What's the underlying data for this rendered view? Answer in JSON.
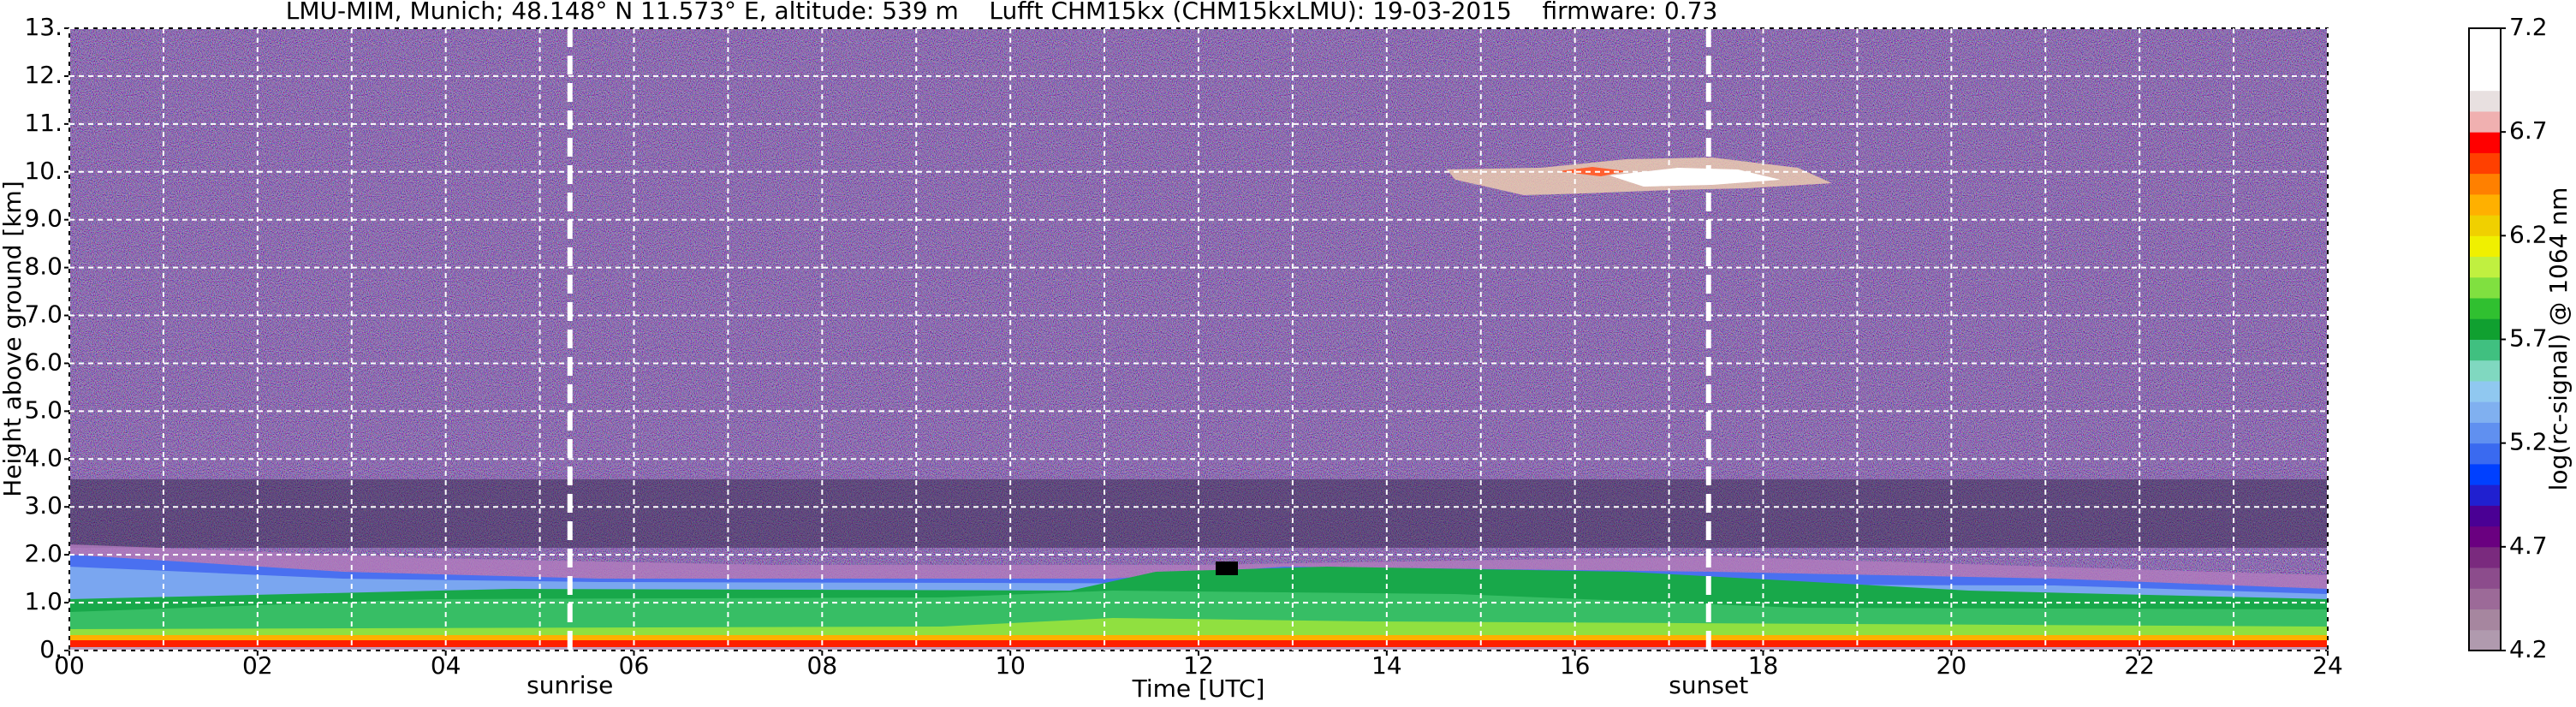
{
  "chart_data": {
    "type": "time-height",
    "title": "LMU-MIM, Munich; 48.148° N 11.573° E, altitude: 539 m    Lufft CHM15kx (CHM15kxLMU): 19-03-2015    firmware: 0.73",
    "xlabel": "Time [UTC]",
    "ylabel": "Height above ground [km]",
    "xlim": [
      0,
      24
    ],
    "xticks": [
      {
        "value": 0,
        "label": "00"
      },
      {
        "value": 2,
        "label": "02"
      },
      {
        "value": 4,
        "label": "04"
      },
      {
        "value": 6,
        "label": "06"
      },
      {
        "value": 8,
        "label": "08"
      },
      {
        "value": 10,
        "label": "10"
      },
      {
        "value": 12,
        "label": "12"
      },
      {
        "value": 14,
        "label": "14"
      },
      {
        "value": 16,
        "label": "16"
      },
      {
        "value": 18,
        "label": "18"
      },
      {
        "value": 20,
        "label": "20"
      },
      {
        "value": 22,
        "label": "22"
      },
      {
        "value": 24,
        "label": "24"
      }
    ],
    "xminorticks": [
      1,
      3,
      5,
      7,
      9,
      11,
      13,
      15,
      17,
      19,
      21,
      23
    ],
    "ylim": [
      0,
      13
    ],
    "yticks": [
      {
        "value": 0,
        "label": "0."
      },
      {
        "value": 1,
        "label": "1.0"
      },
      {
        "value": 2,
        "label": "2.0"
      },
      {
        "value": 3,
        "label": "3.0"
      },
      {
        "value": 4,
        "label": "4.0"
      },
      {
        "value": 5,
        "label": "5.0"
      },
      {
        "value": 6,
        "label": "6.0"
      },
      {
        "value": 7,
        "label": "7.0"
      },
      {
        "value": 8,
        "label": "8.0"
      },
      {
        "value": 9,
        "label": "9.0"
      },
      {
        "value": 10,
        "label": "10."
      },
      {
        "value": 11,
        "label": "11."
      },
      {
        "value": 12,
        "label": "12."
      },
      {
        "value": 13,
        "label": "13."
      }
    ],
    "grid": true,
    "markers": [
      {
        "label": "sunrise",
        "x": 5.32
      },
      {
        "label": "sunset",
        "x": 17.42
      }
    ],
    "colorbar": {
      "label": "log(rc-signal) @ 1064 nm",
      "lim": [
        4.2,
        7.2
      ],
      "ticks": [
        4.2,
        4.7,
        5.2,
        5.7,
        6.2,
        6.7,
        7.2
      ],
      "colors": [
        "#b09aae",
        "#a6869f",
        "#9c6a98",
        "#8c4c8c",
        "#7a2a7e",
        "#6a0080",
        "#4a0094",
        "#2020d0",
        "#0040ff",
        "#3a6af0",
        "#6090f0",
        "#80b0f0",
        "#90c8f0",
        "#80d8c0",
        "#40c080",
        "#10a030",
        "#30c030",
        "#80e040",
        "#c0f040",
        "#f0f000",
        "#f0d000",
        "#ffb000",
        "#ff8000",
        "#ff4000",
        "#ff0000",
        "#f0b0b0",
        "#e8e0e0",
        "#ffffff",
        "#ffffff",
        "#ffffff"
      ]
    }
  }
}
